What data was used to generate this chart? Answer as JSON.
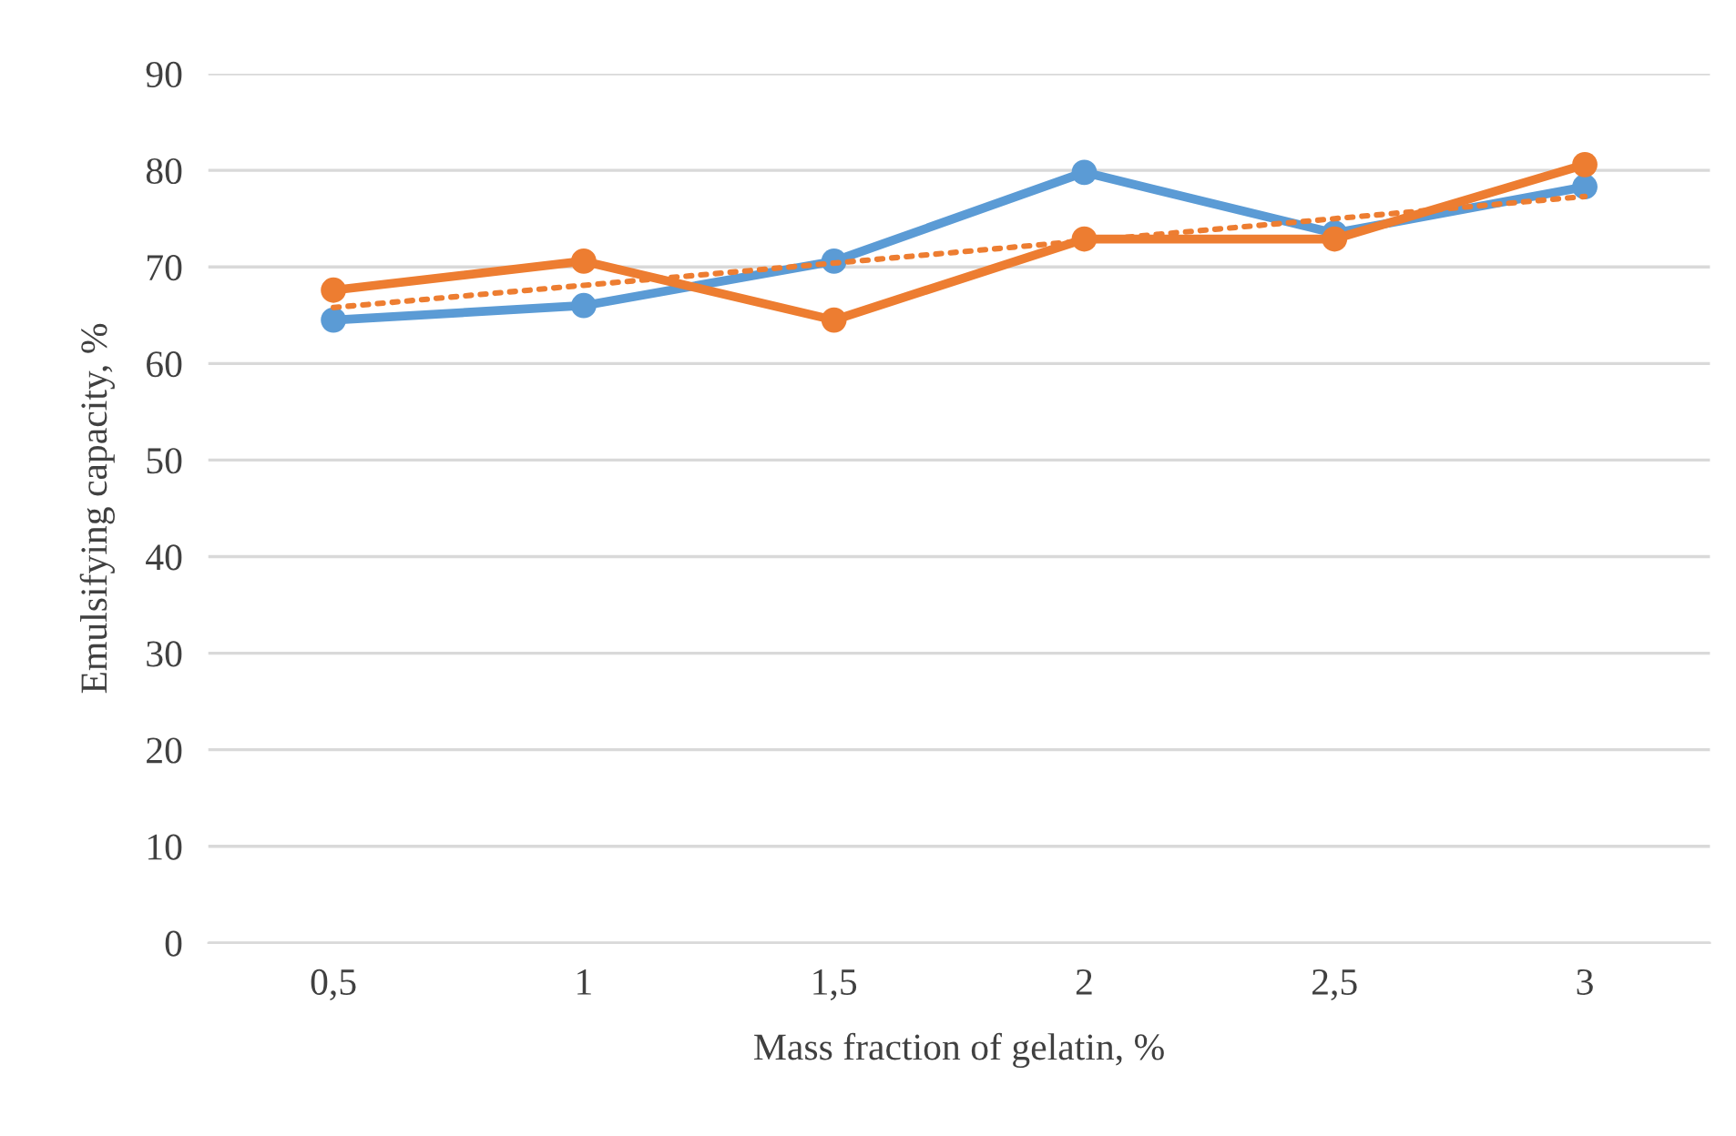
{
  "chart_data": {
    "type": "line",
    "xlabel": "Mass fraction of gelatin, %",
    "ylabel": "Emulsifying capacity, %",
    "categories": [
      "0,5",
      "1",
      "1,5",
      "2",
      "2,5",
      "3"
    ],
    "series": [
      {
        "color": "#5b9bd5",
        "values": [
          64.5,
          66.0,
          70.6,
          79.8,
          73.5,
          78.3
        ],
        "marker": "circle",
        "line_style": "solid"
      },
      {
        "color": "#ed7d31",
        "values": [
          67.6,
          70.6,
          64.5,
          72.9,
          72.9,
          80.6
        ],
        "marker": "circle",
        "line_style": "solid"
      },
      {
        "color": "#ed7d31",
        "values": [
          65.8,
          68.1,
          70.4,
          72.7,
          75.0,
          77.3
        ],
        "marker": "none",
        "line_style": "dotted"
      }
    ],
    "ylim": [
      0,
      90
    ],
    "yticks": [
      0,
      10,
      20,
      30,
      40,
      50,
      60,
      70,
      80,
      90
    ],
    "grid": "y",
    "legend": false
  }
}
